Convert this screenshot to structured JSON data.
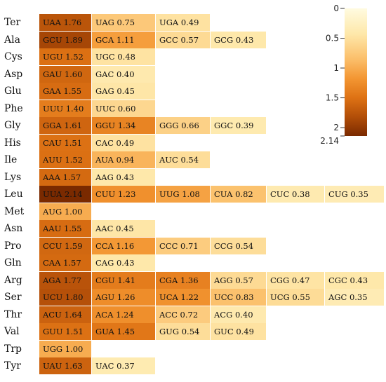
{
  "chart_data": {
    "type": "heatmap",
    "title": "",
    "xlabel": "",
    "ylabel": "",
    "color_scale": {
      "min": 0,
      "max": 2.14,
      "low_color": "#fffbe0",
      "high_color": "#7a2a00"
    },
    "legend": {
      "position": "top-right",
      "ticks": [
        "0",
        "0.5",
        "1",
        "1.5",
        "2",
        "2.14"
      ],
      "tick_values": [
        0,
        0.5,
        1,
        1.5,
        2,
        2.14
      ]
    },
    "rows": [
      {
        "amino_acid": "Ter",
        "codons": [
          {
            "codon": "UAA",
            "value": 1.76
          },
          {
            "codon": "UAG",
            "value": 0.75
          },
          {
            "codon": "UGA",
            "value": 0.49
          }
        ]
      },
      {
        "amino_acid": "Ala",
        "codons": [
          {
            "codon": "GCU",
            "value": 1.89
          },
          {
            "codon": "GCA",
            "value": 1.11
          },
          {
            "codon": "GCC",
            "value": 0.57
          },
          {
            "codon": "GCG",
            "value": 0.43
          }
        ]
      },
      {
        "amino_acid": "Cys",
        "codons": [
          {
            "codon": "UGU",
            "value": 1.52
          },
          {
            "codon": "UGC",
            "value": 0.48
          }
        ]
      },
      {
        "amino_acid": "Asp",
        "codons": [
          {
            "codon": "GAU",
            "value": 1.6
          },
          {
            "codon": "GAC",
            "value": 0.4
          }
        ]
      },
      {
        "amino_acid": "Glu",
        "codons": [
          {
            "codon": "GAA",
            "value": 1.55
          },
          {
            "codon": "GAG",
            "value": 0.45
          }
        ]
      },
      {
        "amino_acid": "Phe",
        "codons": [
          {
            "codon": "UUU",
            "value": 1.4
          },
          {
            "codon": "UUC",
            "value": 0.6
          }
        ]
      },
      {
        "amino_acid": "Gly",
        "codons": [
          {
            "codon": "GGA",
            "value": 1.61
          },
          {
            "codon": "GGU",
            "value": 1.34
          },
          {
            "codon": "GGG",
            "value": 0.66
          },
          {
            "codon": "GGC",
            "value": 0.39
          }
        ]
      },
      {
        "amino_acid": "His",
        "codons": [
          {
            "codon": "CAU",
            "value": 1.51
          },
          {
            "codon": "CAC",
            "value": 0.49
          }
        ]
      },
      {
        "amino_acid": "Ile",
        "codons": [
          {
            "codon": "AUU",
            "value": 1.52
          },
          {
            "codon": "AUA",
            "value": 0.94
          },
          {
            "codon": "AUC",
            "value": 0.54
          }
        ]
      },
      {
        "amino_acid": "Lys",
        "codons": [
          {
            "codon": "AAA",
            "value": 1.57
          },
          {
            "codon": "AAG",
            "value": 0.43
          }
        ]
      },
      {
        "amino_acid": "Leu",
        "codons": [
          {
            "codon": "UUA",
            "value": 2.14
          },
          {
            "codon": "CUU",
            "value": 1.23
          },
          {
            "codon": "UUG",
            "value": 1.08
          },
          {
            "codon": "CUA",
            "value": 0.82
          },
          {
            "codon": "CUC",
            "value": 0.38
          },
          {
            "codon": "CUG",
            "value": 0.35
          }
        ]
      },
      {
        "amino_acid": "Met",
        "codons": [
          {
            "codon": "AUG",
            "value": 1.0
          }
        ]
      },
      {
        "amino_acid": "Asn",
        "codons": [
          {
            "codon": "AAU",
            "value": 1.55
          },
          {
            "codon": "AAC",
            "value": 0.45
          }
        ]
      },
      {
        "amino_acid": "Pro",
        "codons": [
          {
            "codon": "CCU",
            "value": 1.59
          },
          {
            "codon": "CCA",
            "value": 1.16
          },
          {
            "codon": "CCC",
            "value": 0.71
          },
          {
            "codon": "CCG",
            "value": 0.54
          }
        ]
      },
      {
        "amino_acid": "Gln",
        "codons": [
          {
            "codon": "CAA",
            "value": 1.57
          },
          {
            "codon": "CAG",
            "value": 0.43
          }
        ]
      },
      {
        "amino_acid": "Arg",
        "codons": [
          {
            "codon": "AGA",
            "value": 1.77
          },
          {
            "codon": "CGU",
            "value": 1.41
          },
          {
            "codon": "CGA",
            "value": 1.36
          },
          {
            "codon": "AGG",
            "value": 0.57
          },
          {
            "codon": "CGG",
            "value": 0.47
          },
          {
            "codon": "CGC",
            "value": 0.43
          }
        ]
      },
      {
        "amino_acid": "Ser",
        "codons": [
          {
            "codon": "UCU",
            "value": 1.8
          },
          {
            "codon": "AGU",
            "value": 1.26
          },
          {
            "codon": "UCA",
            "value": 1.22
          },
          {
            "codon": "UCC",
            "value": 0.83
          },
          {
            "codon": "UCG",
            "value": 0.55
          },
          {
            "codon": "AGC",
            "value": 0.35
          }
        ]
      },
      {
        "amino_acid": "Thr",
        "codons": [
          {
            "codon": "ACU",
            "value": 1.64
          },
          {
            "codon": "ACA",
            "value": 1.24
          },
          {
            "codon": "ACC",
            "value": 0.72
          },
          {
            "codon": "ACG",
            "value": 0.4
          }
        ]
      },
      {
        "amino_acid": "Val",
        "codons": [
          {
            "codon": "GUU",
            "value": 1.51
          },
          {
            "codon": "GUA",
            "value": 1.45
          },
          {
            "codon": "GUG",
            "value": 0.54
          },
          {
            "codon": "GUC",
            "value": 0.49
          }
        ]
      },
      {
        "amino_acid": "Trp",
        "codons": [
          {
            "codon": "UGG",
            "value": 1.0
          }
        ]
      },
      {
        "amino_acid": "Tyr",
        "codons": [
          {
            "codon": "UAU",
            "value": 1.63
          },
          {
            "codon": "UAC",
            "value": 0.37
          }
        ]
      }
    ]
  }
}
